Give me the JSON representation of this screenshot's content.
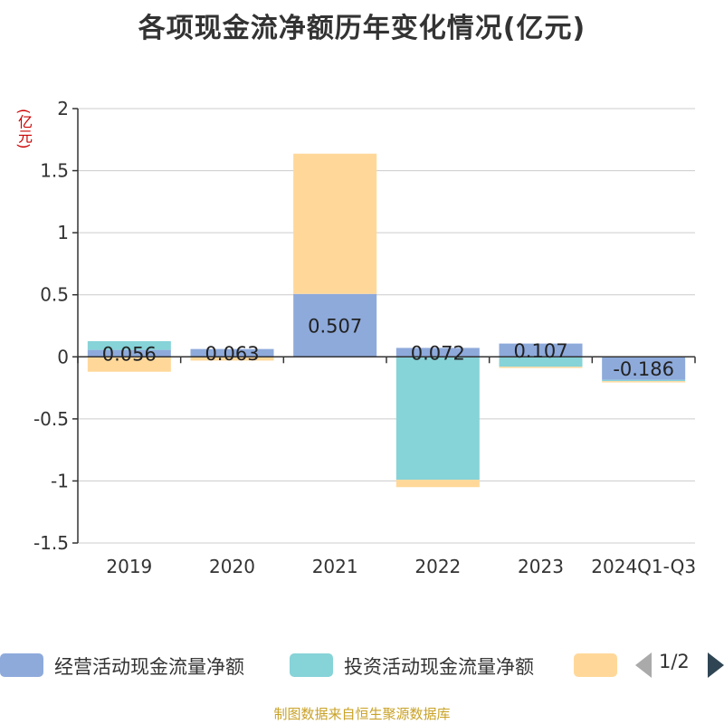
{
  "chart_data": {
    "type": "bar",
    "stacked": true,
    "title": "各项现金流净额历年变化情况(亿元)",
    "unit_label": "(亿元)",
    "categories": [
      "2019",
      "2020",
      "2021",
      "2022",
      "2023",
      "2024Q1-Q3"
    ],
    "series": [
      {
        "name": "经营活动现金流量净额",
        "color": "#8eaadb",
        "values": [
          0.056,
          0.063,
          0.507,
          0.072,
          0.107,
          -0.186
        ]
      },
      {
        "name": "投资活动现金流量净额",
        "color": "#86d3d8",
        "values": [
          0.07,
          0,
          0,
          -0.99,
          -0.08,
          -0.01
        ]
      },
      {
        "name": "",
        "color": "#ffd899",
        "values": [
          -0.12,
          -0.03,
          1.13,
          -0.06,
          -0.01,
          -0.01
        ]
      }
    ],
    "data_labels": [
      "0.056",
      "0.063",
      "0.507",
      "0.072",
      "0.107",
      "-0.186"
    ],
    "yticks": [
      "2",
      "1.5",
      "1",
      "0.5",
      "0",
      "-0.5",
      "-1",
      "-1.5"
    ],
    "ylim": [
      -1.5,
      2
    ],
    "grid": true,
    "legend_position": "bottom"
  },
  "legend": {
    "page_indicator": "1/2"
  },
  "source_note": "制图数据来自恒生聚源数据库"
}
